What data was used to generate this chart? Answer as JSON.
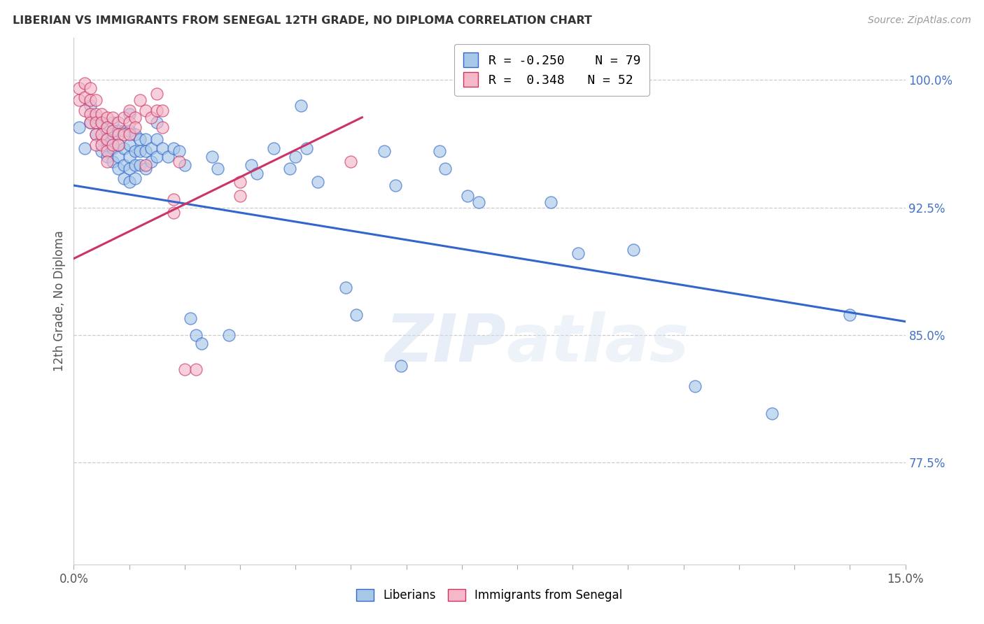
{
  "title": "LIBERIAN VS IMMIGRANTS FROM SENEGAL 12TH GRADE, NO DIPLOMA CORRELATION CHART",
  "source": "Source: ZipAtlas.com",
  "ylabel": "12th Grade, No Diploma",
  "ylabel_right_labels": [
    "100.0%",
    "92.5%",
    "85.0%",
    "77.5%"
  ],
  "ylabel_right_values": [
    1.0,
    0.925,
    0.85,
    0.775
  ],
  "x_min": 0.0,
  "x_max": 0.15,
  "y_min": 0.715,
  "y_max": 1.025,
  "legend_r1": "R = -0.250",
  "legend_n1": "N = 79",
  "legend_r2": "R =  0.348",
  "legend_n2": "N = 52",
  "color_blue": "#a8c8e8",
  "color_pink": "#f4b8c8",
  "line_color_blue": "#3366cc",
  "line_color_pink": "#cc3366",
  "watermark": "ZIPatlas",
  "blue_scatter": [
    [
      0.001,
      0.972
    ],
    [
      0.002,
      0.96
    ],
    [
      0.003,
      0.985
    ],
    [
      0.003,
      0.975
    ],
    [
      0.004,
      0.978
    ],
    [
      0.004,
      0.968
    ],
    [
      0.005,
      0.975
    ],
    [
      0.005,
      0.965
    ],
    [
      0.005,
      0.958
    ],
    [
      0.006,
      0.972
    ],
    [
      0.006,
      0.965
    ],
    [
      0.006,
      0.955
    ],
    [
      0.007,
      0.975
    ],
    [
      0.007,
      0.968
    ],
    [
      0.007,
      0.96
    ],
    [
      0.007,
      0.952
    ],
    [
      0.008,
      0.97
    ],
    [
      0.008,
      0.962
    ],
    [
      0.008,
      0.955
    ],
    [
      0.008,
      0.948
    ],
    [
      0.009,
      0.97
    ],
    [
      0.009,
      0.96
    ],
    [
      0.009,
      0.95
    ],
    [
      0.009,
      0.942
    ],
    [
      0.01,
      0.98
    ],
    [
      0.01,
      0.97
    ],
    [
      0.01,
      0.962
    ],
    [
      0.01,
      0.955
    ],
    [
      0.01,
      0.948
    ],
    [
      0.01,
      0.94
    ],
    [
      0.011,
      0.968
    ],
    [
      0.011,
      0.958
    ],
    [
      0.011,
      0.95
    ],
    [
      0.011,
      0.942
    ],
    [
      0.012,
      0.965
    ],
    [
      0.012,
      0.958
    ],
    [
      0.012,
      0.95
    ],
    [
      0.013,
      0.965
    ],
    [
      0.013,
      0.958
    ],
    [
      0.013,
      0.948
    ],
    [
      0.014,
      0.96
    ],
    [
      0.014,
      0.952
    ],
    [
      0.015,
      0.975
    ],
    [
      0.015,
      0.965
    ],
    [
      0.015,
      0.955
    ],
    [
      0.016,
      0.96
    ],
    [
      0.017,
      0.955
    ],
    [
      0.018,
      0.96
    ],
    [
      0.019,
      0.958
    ],
    [
      0.02,
      0.95
    ],
    [
      0.021,
      0.86
    ],
    [
      0.022,
      0.85
    ],
    [
      0.023,
      0.845
    ],
    [
      0.025,
      0.955
    ],
    [
      0.026,
      0.948
    ],
    [
      0.028,
      0.85
    ],
    [
      0.032,
      0.95
    ],
    [
      0.033,
      0.945
    ],
    [
      0.036,
      0.96
    ],
    [
      0.039,
      0.948
    ],
    [
      0.04,
      0.955
    ],
    [
      0.041,
      0.985
    ],
    [
      0.042,
      0.96
    ],
    [
      0.044,
      0.94
    ],
    [
      0.049,
      0.878
    ],
    [
      0.051,
      0.862
    ],
    [
      0.056,
      0.958
    ],
    [
      0.058,
      0.938
    ],
    [
      0.059,
      0.832
    ],
    [
      0.066,
      0.958
    ],
    [
      0.067,
      0.948
    ],
    [
      0.071,
      0.932
    ],
    [
      0.073,
      0.928
    ],
    [
      0.086,
      0.928
    ],
    [
      0.091,
      0.898
    ],
    [
      0.101,
      0.9
    ],
    [
      0.112,
      0.82
    ],
    [
      0.126,
      0.804
    ],
    [
      0.14,
      0.862
    ]
  ],
  "pink_scatter": [
    [
      0.001,
      0.995
    ],
    [
      0.001,
      0.988
    ],
    [
      0.002,
      0.998
    ],
    [
      0.002,
      0.99
    ],
    [
      0.002,
      0.982
    ],
    [
      0.003,
      0.995
    ],
    [
      0.003,
      0.988
    ],
    [
      0.003,
      0.98
    ],
    [
      0.003,
      0.975
    ],
    [
      0.004,
      0.988
    ],
    [
      0.004,
      0.98
    ],
    [
      0.004,
      0.975
    ],
    [
      0.004,
      0.968
    ],
    [
      0.004,
      0.962
    ],
    [
      0.005,
      0.98
    ],
    [
      0.005,
      0.975
    ],
    [
      0.005,
      0.968
    ],
    [
      0.005,
      0.962
    ],
    [
      0.006,
      0.978
    ],
    [
      0.006,
      0.972
    ],
    [
      0.006,
      0.965
    ],
    [
      0.006,
      0.958
    ],
    [
      0.006,
      0.952
    ],
    [
      0.007,
      0.978
    ],
    [
      0.007,
      0.97
    ],
    [
      0.007,
      0.962
    ],
    [
      0.008,
      0.975
    ],
    [
      0.008,
      0.968
    ],
    [
      0.008,
      0.962
    ],
    [
      0.009,
      0.978
    ],
    [
      0.009,
      0.968
    ],
    [
      0.01,
      0.982
    ],
    [
      0.01,
      0.975
    ],
    [
      0.01,
      0.968
    ],
    [
      0.011,
      0.978
    ],
    [
      0.011,
      0.972
    ],
    [
      0.012,
      0.988
    ],
    [
      0.013,
      0.982
    ],
    [
      0.013,
      0.95
    ],
    [
      0.014,
      0.978
    ],
    [
      0.015,
      0.992
    ],
    [
      0.015,
      0.982
    ],
    [
      0.016,
      0.982
    ],
    [
      0.016,
      0.972
    ],
    [
      0.018,
      0.93
    ],
    [
      0.018,
      0.922
    ],
    [
      0.019,
      0.952
    ],
    [
      0.02,
      0.83
    ],
    [
      0.022,
      0.83
    ],
    [
      0.03,
      0.94
    ],
    [
      0.03,
      0.932
    ],
    [
      0.05,
      0.952
    ]
  ],
  "blue_line": [
    [
      0.0,
      0.938
    ],
    [
      0.15,
      0.858
    ]
  ],
  "pink_line": [
    [
      0.0,
      0.895
    ],
    [
      0.052,
      0.978
    ]
  ]
}
